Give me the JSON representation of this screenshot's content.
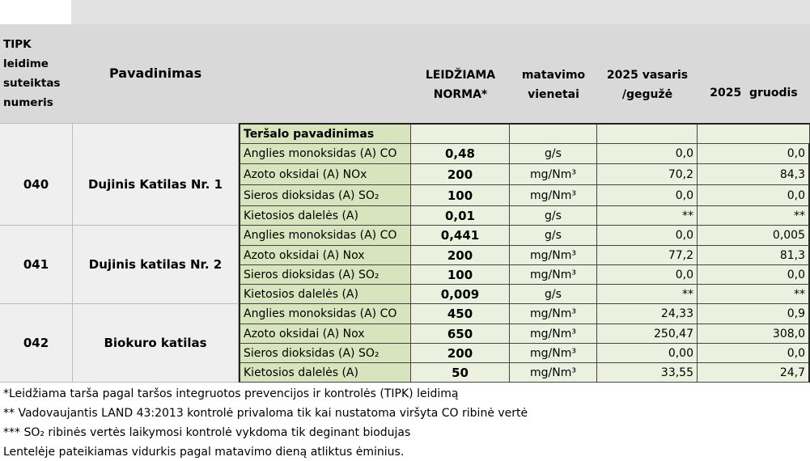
{
  "header": {
    "id": "TIPK leidime suteiktas numeris",
    "name": "Pavadinimas",
    "norm": "LEIDŽIAMA NORMA*",
    "unit": "matavimo vienetai",
    "period1": "2025 vasaris /gegužė",
    "period2": "2025  gruodis"
  },
  "sub_header": "Teršalo pavadinimas",
  "groups": [
    {
      "id": "040",
      "name": "Dujinis Katilas Nr. 1",
      "rows": [
        [
          "Anglies monoksidas (A) CO",
          "0,48",
          "g/s",
          "0,0",
          "0,0"
        ],
        [
          "Azoto oksidai (A) NOx",
          "200",
          "mg/Nm³",
          "70,2",
          "84,3"
        ],
        [
          "Sieros dioksidas (A) SO₂",
          "100",
          "mg/Nm³",
          "0,0",
          "0,0"
        ],
        [
          "Kietosios dalelės (A)",
          "0,01",
          "g/s",
          "**",
          "**"
        ]
      ]
    },
    {
      "id": "041",
      "name": "Dujinis katilas Nr. 2",
      "rows": [
        [
          "Anglies monoksidas (A)  CO",
          "0,441",
          "g/s",
          "0,0",
          "0,005"
        ],
        [
          "Azoto oksidai (A) Nox",
          "200",
          "mg/Nm³",
          "77,2",
          "81,3"
        ],
        [
          "Sieros dioksidas (A) SO₂",
          "100",
          "mg/Nm³",
          "0,0",
          "0,0"
        ],
        [
          "Kietosios dalelės (A)",
          "0,009",
          "g/s",
          "**",
          "**"
        ]
      ]
    },
    {
      "id": "042",
      "name": "Biokuro katilas",
      "rows": [
        [
          "Anglies monoksidas (A)  CO",
          "450",
          "mg/Nm³",
          "24,33",
          "0,9"
        ],
        [
          "Azoto oksidai (A) Nox",
          "650",
          "mg/Nm³",
          "250,47",
          "308,0"
        ],
        [
          "Sieros dioksidas (A) SO₂",
          "200",
          "mg/Nm³",
          "0,00",
          "0,0"
        ],
        [
          "Kietosios dalelės (A)",
          "50",
          "mg/Nm³",
          "33,55",
          "24,7"
        ]
      ]
    }
  ],
  "footnotes": [
    "*Leidžiama tarša pagal taršos integruotos prevencijos ir kontrolės (TIPK) leidimą",
    "** Vadovaujantis LAND 43:2013 kontrolė privaloma tik kai nustatoma viršyta CO ribinė vertė",
    "*** SO₂ ribinės vertės laikymosi kontrolė vykdoma tik deginant biodujas",
    "Lentelėje pateikiamas vidurkis pagal matavimo dieną atliktus ėminius."
  ]
}
